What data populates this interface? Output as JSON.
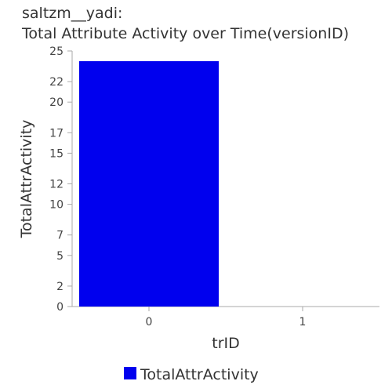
{
  "chart_data": {
    "type": "bar",
    "title": "saltzm__yadi:",
    "subtitle": "Total Attribute Activity over Time(versionID)",
    "xlabel": "trID",
    "ylabel": "TotalAttrActivity",
    "categories": [
      "0",
      "1"
    ],
    "series": [
      {
        "name": "TotalAttrActivity",
        "values": [
          24,
          0
        ],
        "color": "#0000ee"
      }
    ],
    "ylim": [
      0,
      25
    ],
    "yticks": [
      0,
      2,
      5,
      7,
      10,
      12,
      15,
      17,
      20,
      22,
      25
    ],
    "grid": false,
    "legend_position": "bottom-center"
  }
}
